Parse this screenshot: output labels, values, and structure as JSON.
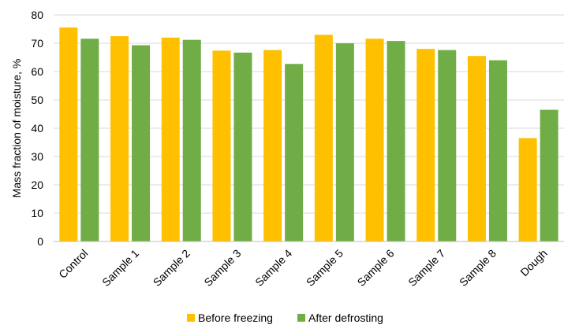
{
  "chart_data": {
    "type": "bar",
    "title": "",
    "xlabel": "",
    "ylabel": "Mass fraction of moisture, %",
    "ylim": [
      0,
      80
    ],
    "yticks": [
      0,
      10,
      20,
      30,
      40,
      50,
      60,
      70,
      80
    ],
    "grid": true,
    "legend_position": "bottom",
    "categories": [
      "Control",
      "Sample 1",
      "Sample 2",
      "Sample 3",
      "Sample 4",
      "Sample 5",
      "Sample 6",
      "Sample 7",
      "Sample 8",
      "Dough"
    ],
    "series": [
      {
        "name": "Before freezing",
        "color": "#FFC000",
        "values": [
          75.6,
          72.5,
          72.0,
          67.4,
          67.6,
          73.0,
          71.6,
          68.0,
          65.5,
          36.5
        ]
      },
      {
        "name": "After defrosting",
        "color": "#70AD47",
        "values": [
          71.6,
          69.3,
          71.2,
          66.7,
          62.7,
          70.0,
          70.8,
          67.6,
          64.0,
          46.5
        ]
      }
    ]
  }
}
